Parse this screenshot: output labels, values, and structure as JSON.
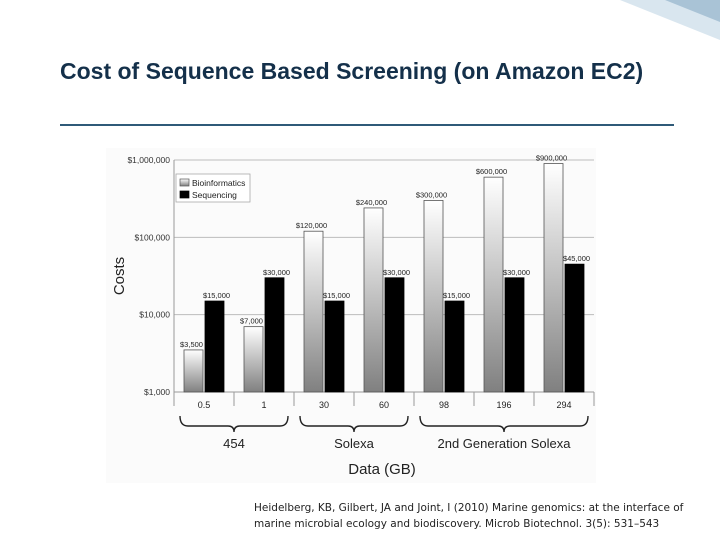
{
  "slide": {
    "title": "Cost of Sequence Based Screening (on Amazon EC2)",
    "citation": "Heidelberg, KB, Gilbert, JA and Joint, I (2010) Marine genomics: at the interface of marine microbial ecology and biodiscovery. Microb Biotechnol. 3(5): 531–543"
  },
  "colors": {
    "title": "#14304a",
    "rule": "#2f5a78",
    "corner_light": "#d9e6ef",
    "corner_dark": "#a9c3d6",
    "bioinformatics_fill_top": "#ffffff",
    "bioinformatics_fill_bottom": "#808080",
    "sequencing_fill": "#000000"
  },
  "chart_data": {
    "type": "bar",
    "xlabel": "Data (GB)",
    "ylabel": "Costs",
    "yscale": "log",
    "ylim": [
      1000,
      1000000
    ],
    "yticks": [
      {
        "value": 1000,
        "label": "$1,000"
      },
      {
        "value": 10000,
        "label": "$10,000"
      },
      {
        "value": 100000,
        "label": "$100,000"
      },
      {
        "value": 1000000,
        "label": "$1,000,000"
      }
    ],
    "categories": [
      "0.5",
      "1",
      "30",
      "60",
      "98",
      "196",
      "294"
    ],
    "legend_position": "top-left",
    "grid": true,
    "series": [
      {
        "name": "Bioinformatics",
        "values": [
          3500,
          7000,
          120000,
          240000,
          300000,
          600000,
          900000
        ],
        "labels": [
          "$3,500",
          "$7,000",
          "$120,000",
          "$240,000",
          "$300,000",
          "$600,000",
          "$900,000"
        ]
      },
      {
        "name": "Sequencing",
        "values": [
          15000,
          30000,
          15000,
          30000,
          15000,
          30000,
          45000
        ],
        "labels": [
          "$15,000",
          "$30,000",
          "$15,000",
          "$30,000",
          "$15,000",
          "$30,000",
          "$45,000"
        ]
      }
    ],
    "groups": [
      {
        "label": "454",
        "from": 0,
        "to": 1
      },
      {
        "label": "Solexa",
        "from": 2,
        "to": 3
      },
      {
        "label": "2nd Generation Solexa",
        "from": 4,
        "to": 6
      }
    ]
  }
}
